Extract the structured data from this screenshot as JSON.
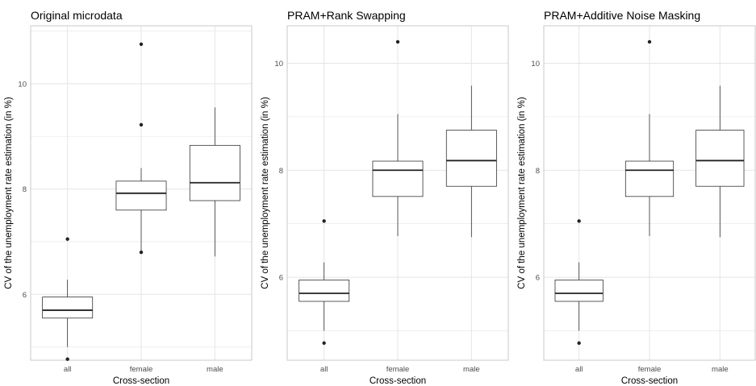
{
  "chart_data": [
    {
      "type": "boxplot",
      "title": "Original microdata",
      "xlabel": "Cross-section",
      "ylabel": "CV of the unemployment rate estimation (in %)",
      "categories": [
        "all",
        "female",
        "male"
      ],
      "ylim": [
        4.75,
        11.1
      ],
      "yticks": [
        6,
        8,
        10
      ],
      "grid": true,
      "boxes": [
        {
          "category": "all",
          "whisker_low": 5.0,
          "q1": 5.55,
          "median": 5.7,
          "q3": 5.95,
          "whisker_high": 6.28,
          "outliers": [
            7.05,
            4.77
          ]
        },
        {
          "category": "female",
          "whisker_low": 6.8,
          "q1": 7.6,
          "median": 7.92,
          "q3": 8.15,
          "whisker_high": 8.4,
          "outliers": [
            10.75,
            9.22,
            6.8
          ]
        },
        {
          "category": "male",
          "whisker_low": 6.72,
          "q1": 7.78,
          "median": 8.12,
          "q3": 8.83,
          "whisker_high": 9.55,
          "outliers": []
        }
      ]
    },
    {
      "type": "boxplot",
      "title": "PRAM+Rank Swapping",
      "xlabel": "Cross-section",
      "ylabel": "CV of the unemployment rate estimation (in %)",
      "categories": [
        "all",
        "female",
        "male"
      ],
      "ylim": [
        4.45,
        10.7
      ],
      "yticks": [
        6,
        8,
        10
      ],
      "grid": true,
      "boxes": [
        {
          "category": "all",
          "whisker_low": 5.0,
          "q1": 5.55,
          "median": 5.7,
          "q3": 5.95,
          "whisker_high": 6.28,
          "outliers": [
            7.05,
            4.77
          ]
        },
        {
          "category": "female",
          "whisker_low": 6.77,
          "q1": 7.51,
          "median": 8.0,
          "q3": 8.17,
          "whisker_high": 9.05,
          "outliers": [
            10.4
          ]
        },
        {
          "category": "male",
          "whisker_low": 6.75,
          "q1": 7.7,
          "median": 8.18,
          "q3": 8.75,
          "whisker_high": 9.58,
          "outliers": []
        }
      ]
    },
    {
      "type": "boxplot",
      "title": "PRAM+Additive Noise Masking",
      "xlabel": "Cross-section",
      "ylabel": "CV of the unemployment rate estimation (in %)",
      "categories": [
        "all",
        "female",
        "male"
      ],
      "ylim": [
        4.45,
        10.7
      ],
      "yticks": [
        6,
        8,
        10
      ],
      "grid": true,
      "boxes": [
        {
          "category": "all",
          "whisker_low": 5.0,
          "q1": 5.55,
          "median": 5.7,
          "q3": 5.95,
          "whisker_high": 6.28,
          "outliers": [
            7.05,
            4.77
          ]
        },
        {
          "category": "female",
          "whisker_low": 6.77,
          "q1": 7.51,
          "median": 8.0,
          "q3": 8.17,
          "whisker_high": 9.05,
          "outliers": [
            10.4
          ]
        },
        {
          "category": "male",
          "whisker_low": 6.75,
          "q1": 7.7,
          "median": 8.18,
          "q3": 8.75,
          "whisker_high": 9.58,
          "outliers": []
        }
      ]
    }
  ],
  "colors": {
    "grid": "#e5e5e5",
    "panel_border": "#c8c8c8",
    "box_fill": "#ffffff",
    "box_line": "#333333",
    "median": "#222222",
    "tick_text": "#4d4d4d"
  }
}
